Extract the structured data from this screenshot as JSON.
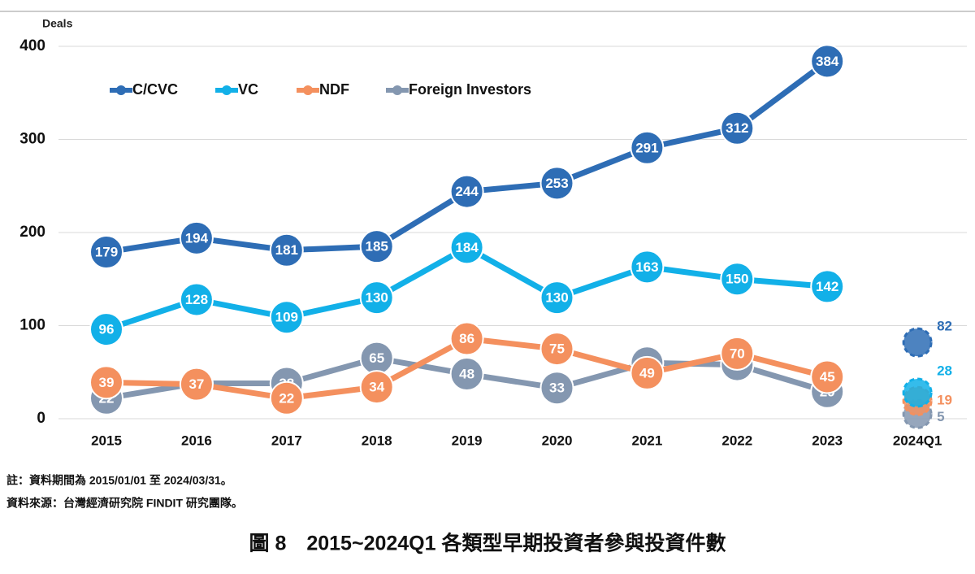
{
  "chart_data": {
    "type": "line",
    "y_axis_label": "Deals",
    "categories": [
      "2015",
      "2016",
      "2017",
      "2018",
      "2019",
      "2020",
      "2021",
      "2022",
      "2023",
      "2024Q1"
    ],
    "series": [
      {
        "name": "C/CVC",
        "color": "#2e6db5",
        "values": [
          179,
          194,
          181,
          185,
          244,
          253,
          291,
          312,
          384,
          82
        ]
      },
      {
        "name": "VC",
        "color": "#12b0e8",
        "values": [
          96,
          128,
          109,
          130,
          184,
          130,
          163,
          150,
          142,
          28
        ]
      },
      {
        "name": "NDF",
        "color": "#f4905e",
        "values": [
          39,
          37,
          22,
          34,
          86,
          75,
          49,
          70,
          45,
          19
        ]
      },
      {
        "name": "Foreign Investors",
        "color": "#8497b0",
        "values": [
          22,
          38,
          38,
          65,
          48,
          33,
          60,
          58,
          29,
          5
        ]
      }
    ],
    "last_point_style": "dashed",
    "ylim": [
      0,
      400
    ],
    "yticks": [
      0,
      100,
      200,
      300,
      400
    ],
    "grid": true,
    "legend": "top-left",
    "notes": [
      "註：資料期間為 2015/01/01 至 2024/03/31。",
      "資料來源：台灣經濟研究院 FINDIT 研究團隊。"
    ],
    "caption": "圖 8　2015~2024Q1 各類型早期投資者參與投資件數"
  }
}
